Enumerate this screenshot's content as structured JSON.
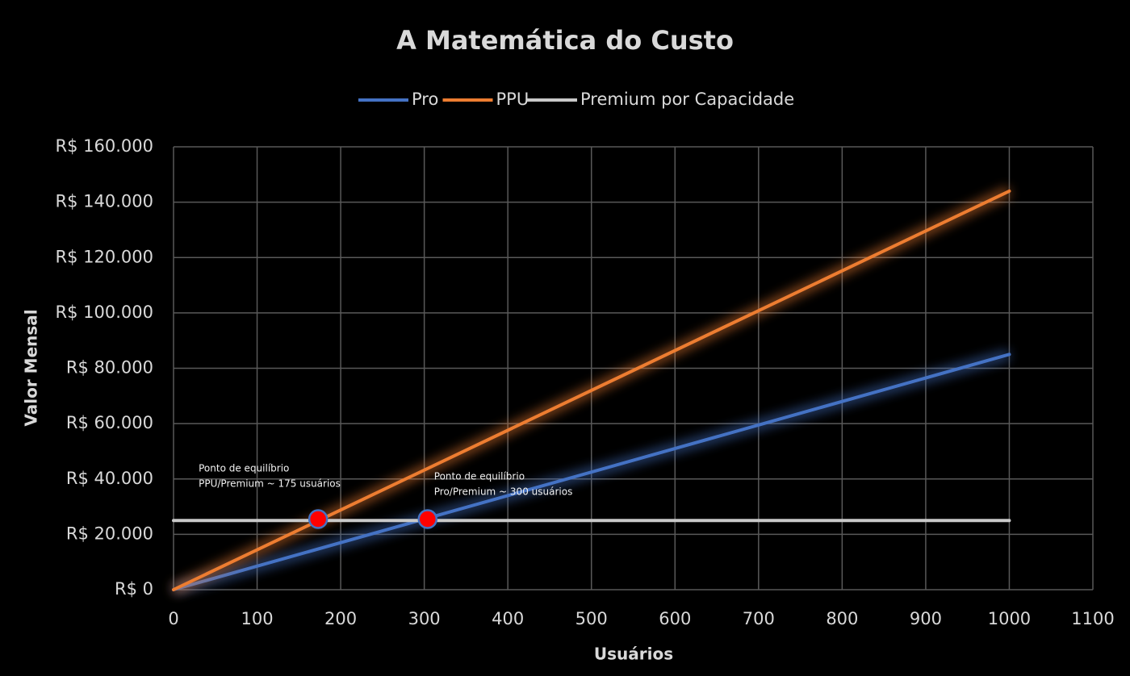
{
  "chart_data": {
    "type": "line",
    "title": "A Matemática do Custo",
    "x_label": "Usuários",
    "y_label": "Valor  Mensal",
    "x": [
      0,
      1000
    ],
    "series": [
      {
        "name": "Pro",
        "color": "#4472c4",
        "values": [
          0,
          85000
        ]
      },
      {
        "name": "PPU",
        "color": "#ed7d31",
        "values": [
          0,
          144000
        ]
      },
      {
        "name": "Premium por Capacidade",
        "color": "#c9c9c9",
        "values": [
          25000,
          25000
        ]
      }
    ],
    "xlim": [
      0,
      1100
    ],
    "xticks": [
      0,
      100,
      200,
      300,
      400,
      500,
      600,
      700,
      800,
      900,
      1000,
      1100
    ],
    "ylim": [
      0,
      160000
    ],
    "yticks": [
      {
        "value": 0,
        "label": "R$ 0"
      },
      {
        "value": 20000,
        "label": "R$ 20.000"
      },
      {
        "value": 40000,
        "label": "R$ 40.000"
      },
      {
        "value": 60000,
        "label": "R$ 60.000"
      },
      {
        "value": 80000,
        "label": "R$ 80.000"
      },
      {
        "value": 100000,
        "label": "R$ 100.000"
      },
      {
        "value": 120000,
        "label": "R$ 120.000"
      },
      {
        "value": 140000,
        "label": "R$ 140.000"
      },
      {
        "value": 160000,
        "label": "R$ 160.000"
      }
    ],
    "grid": true,
    "legend": "top",
    "annotations": [
      {
        "x": 173,
        "y": 25500,
        "color": "#ff0000",
        "lines": [
          "Ponto de equilíbrio",
          "PPU/Premium ~ 175 usuários"
        ]
      },
      {
        "x": 304,
        "y": 25500,
        "color": "#ff0000",
        "lines": [
          "Ponto de equilíbrio",
          "Pro/Premium ~ 300 usuários"
        ]
      }
    ]
  }
}
